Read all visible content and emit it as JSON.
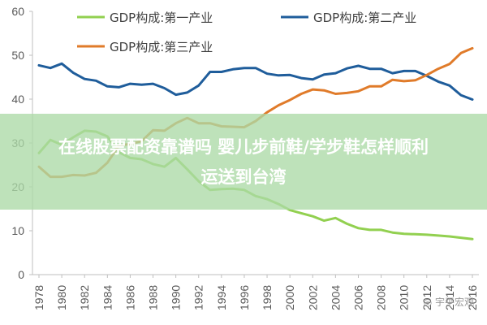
{
  "chart_data": {
    "type": "line",
    "title": "",
    "xlabel": "",
    "ylabel": "",
    "ylim": [
      0,
      60
    ],
    "yticks": [
      0,
      10,
      20,
      30,
      40,
      50,
      60
    ],
    "grid": false,
    "legend_position": "top",
    "x": [
      1978,
      1979,
      1980,
      1981,
      1982,
      1983,
      1984,
      1985,
      1986,
      1987,
      1988,
      1989,
      1990,
      1991,
      1992,
      1993,
      1994,
      1995,
      1996,
      1997,
      1998,
      1999,
      2000,
      2001,
      2002,
      2003,
      2004,
      2005,
      2006,
      2007,
      2008,
      2009,
      2010,
      2011,
      2012,
      2013,
      2014,
      2015,
      2016
    ],
    "xtick_labels": [
      "1978",
      "1980",
      "1982",
      "1984",
      "1986",
      "1988",
      "1990",
      "1992",
      "1994",
      "1996",
      "1998",
      "2000",
      "2002",
      "2004",
      "2006",
      "2008",
      "2010",
      "2012",
      "2014",
      "2016"
    ],
    "series": [
      {
        "name": "GDP构成:第一产业",
        "color": "#92d050",
        "values": [
          27.7,
          30.7,
          29.6,
          31.3,
          32.8,
          32.6,
          31.5,
          27.9,
          26.6,
          26.3,
          25.2,
          24.6,
          26.6,
          24.0,
          21.3,
          19.3,
          19.5,
          19.6,
          19.3,
          17.9,
          17.2,
          16.1,
          14.7,
          14.0,
          13.3,
          12.3,
          12.9,
          11.6,
          10.6,
          10.2,
          10.2,
          9.6,
          9.3,
          9.2,
          9.1,
          8.9,
          8.7,
          8.4,
          8.1
        ]
      },
      {
        "name": "GDP构成:第二产业",
        "color": "#1f5d9b",
        "values": [
          47.7,
          47.1,
          48.1,
          46.0,
          44.6,
          44.2,
          42.9,
          42.7,
          43.5,
          43.3,
          43.5,
          42.5,
          41.0,
          41.5,
          43.1,
          46.2,
          46.2,
          46.8,
          47.1,
          47.1,
          45.8,
          45.4,
          45.5,
          44.8,
          44.5,
          45.6,
          45.9,
          47.0,
          47.6,
          46.9,
          46.9,
          45.9,
          46.4,
          46.4,
          45.3,
          44.0,
          43.1,
          40.9,
          39.9
        ]
      },
      {
        "name": "GDP构成:第三产业",
        "color": "#e07b2a",
        "values": [
          24.6,
          22.3,
          22.3,
          22.7,
          22.6,
          23.2,
          25.5,
          29.4,
          29.8,
          30.4,
          32.9,
          32.8,
          34.5,
          35.7,
          34.5,
          34.5,
          33.8,
          33.7,
          33.6,
          35.0,
          37.0,
          38.6,
          39.8,
          41.2,
          42.2,
          42.0,
          41.2,
          41.4,
          41.8,
          42.9,
          42.9,
          44.4,
          44.1,
          44.3,
          45.5,
          46.9,
          48.0,
          50.5,
          51.6
        ]
      }
    ]
  },
  "overlay": {
    "line1": "在线股票配资靠谱吗 婴儿步前鞋/学步鞋怎样顺利",
    "line2": "运送到台湾"
  },
  "watermark": {
    "text": "◎ 宇平宏观"
  }
}
